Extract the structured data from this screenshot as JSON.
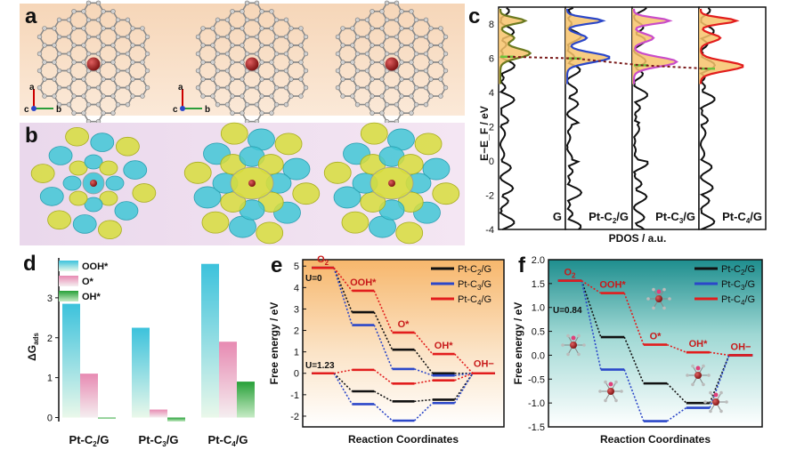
{
  "panel_labels": {
    "a": "a",
    "b": "b",
    "c": "c",
    "d": "d",
    "e": "e",
    "f": "f"
  },
  "colors": {
    "black": "#111111",
    "blue": "#2b47c9",
    "red": "#e21d1d",
    "magenta": "#c94cc9",
    "olive": "#6b7a1f",
    "fill": "#f7c36b",
    "cyan": "#3cc6d8",
    "pink": "#e88cb3",
    "green": "#2e9b3a",
    "teal": "#1f8f8f",
    "orange": "#f4b76a"
  },
  "panel_a": {
    "axis_a": "a",
    "axis_b": "b",
    "axis_c": "c",
    "structures": 3
  },
  "panel_b": {
    "density_plots": 3
  },
  "chart_data": [
    {
      "id": "c",
      "type": "line",
      "ylabel": "E−E_F / eV",
      "xlabel": "PDOS / a.u.",
      "ylim": [
        -4,
        9
      ],
      "yticks": [
        "8",
        "6",
        "4",
        "2",
        "0",
        "-2",
        "-4"
      ],
      "subpanels": [
        "G",
        "Pt-C2/G",
        "Pt-C3/G",
        "Pt-C4/G"
      ],
      "subpanel_labels": [
        {
          "main": "G",
          "sub": ""
        },
        {
          "main": "Pt-C",
          "sub": "2",
          "tail": "/G"
        },
        {
          "main": "Pt-C",
          "sub": "3",
          "tail": "/G"
        },
        {
          "main": "Pt-C",
          "sub": "4",
          "tail": "/G"
        }
      ],
      "pt_dband_center": [
        6.1,
        6.0,
        5.6,
        5.4
      ]
    },
    {
      "id": "d",
      "type": "bar",
      "ylabel_main": "ΔG",
      "ylabel_sub": "ads",
      "ylim": [
        -0.1,
        4
      ],
      "yticks": [
        "0",
        "1",
        "2",
        "3"
      ],
      "categories": [
        {
          "main": "Pt-C",
          "sub": "2",
          "tail": "/G"
        },
        {
          "main": "Pt-C",
          "sub": "3",
          "tail": "/G"
        },
        {
          "main": "Pt-C",
          "sub": "4",
          "tail": "/G"
        }
      ],
      "series": [
        {
          "name": "OOH*",
          "values": [
            2.85,
            2.25,
            3.85
          ]
        },
        {
          "name": "O*",
          "values": [
            1.1,
            0.2,
            1.9
          ]
        },
        {
          "name": "OH*",
          "values": [
            0.0,
            -0.1,
            0.9
          ]
        }
      ]
    },
    {
      "id": "e",
      "type": "line",
      "ylabel": "Free energy / eV",
      "xlabel": "Reaction Coordinates",
      "ylim": [
        -2.5,
        5.3
      ],
      "yticks": [
        "5",
        "4",
        "3",
        "2",
        "1",
        "0",
        "-1",
        "-2"
      ],
      "steps": [
        "O2",
        "OOH*",
        "O*",
        "OH*",
        "OH−"
      ],
      "annotations": [
        "U=0",
        "U=1.23"
      ],
      "legend": [
        "Pt-C2/G",
        "Pt-C3/G",
        "Pt-C4/G"
      ],
      "legend_labels": [
        {
          "main": "Pt-C",
          "sub": "2",
          "tail": "/G"
        },
        {
          "main": "Pt-C",
          "sub": "3",
          "tail": "/G"
        },
        {
          "main": "Pt-C",
          "sub": "4",
          "tail": "/G"
        }
      ],
      "series": [
        {
          "name": "Pt-C2/G U=0",
          "values": [
            4.92,
            2.85,
            1.1,
            0.0,
            0.0
          ]
        },
        {
          "name": "Pt-C3/G U=0",
          "values": [
            4.92,
            2.25,
            0.2,
            -0.1,
            0.0
          ]
        },
        {
          "name": "Pt-C4/G U=0",
          "values": [
            4.92,
            3.85,
            1.9,
            0.9,
            0.0
          ]
        },
        {
          "name": "Pt-C2/G U=1.23",
          "values": [
            0.0,
            -0.84,
            -1.31,
            -1.23,
            0.0
          ]
        },
        {
          "name": "Pt-C3/G U=1.23",
          "values": [
            0.0,
            -1.44,
            -2.21,
            -1.39,
            0.0
          ]
        },
        {
          "name": "Pt-C4/G U=1.23",
          "values": [
            0.0,
            0.16,
            -0.48,
            -0.33,
            0.0
          ]
        }
      ]
    },
    {
      "id": "f",
      "type": "line",
      "ylabel": "Free energy / eV",
      "xlabel": "Reaction Coordinates",
      "ylim": [
        -1.5,
        2.0
      ],
      "yticks": [
        "2.0",
        "1.5",
        "1.0",
        "0.5",
        "0.0",
        "-0.5",
        "-1.0",
        "-1.5"
      ],
      "steps": [
        "O2",
        "OOH*",
        "O*",
        "OH*",
        "OH−"
      ],
      "annotations": [
        "U=0.84"
      ],
      "legend": [
        "Pt-C2/G",
        "Pt-C3/G",
        "Pt-C4/G"
      ],
      "legend_labels": [
        {
          "main": "Pt-C",
          "sub": "2",
          "tail": "/G"
        },
        {
          "main": "Pt-C",
          "sub": "3",
          "tail": "/G"
        },
        {
          "main": "Pt-C",
          "sub": "4",
          "tail": "/G"
        }
      ],
      "series": [
        {
          "name": "Pt-C2/G",
          "values": [
            1.56,
            0.38,
            -0.59,
            -1.0,
            0.0
          ]
        },
        {
          "name": "Pt-C3/G",
          "values": [
            1.56,
            -0.3,
            -1.38,
            -1.1,
            0.0
          ]
        },
        {
          "name": "Pt-C4/G",
          "values": [
            1.56,
            1.3,
            0.22,
            0.06,
            0.0
          ]
        }
      ]
    }
  ]
}
